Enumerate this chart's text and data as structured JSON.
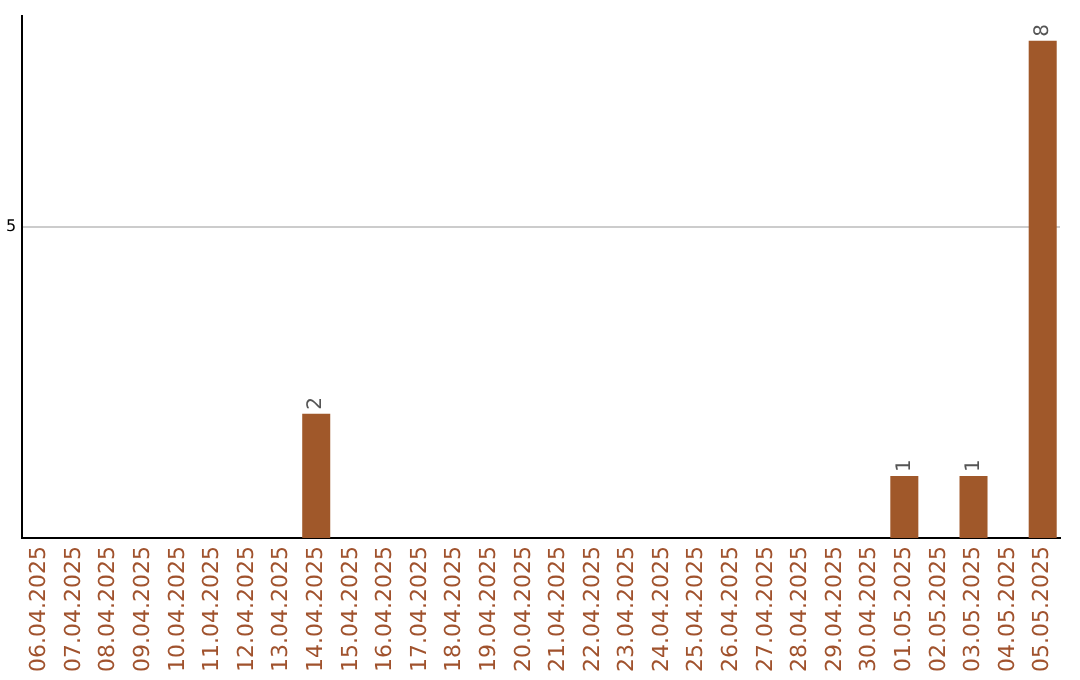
{
  "chart_data": {
    "type": "bar",
    "categories": [
      "06.04.2025",
      "07.04.2025",
      "08.04.2025",
      "09.04.2025",
      "10.04.2025",
      "11.04.2025",
      "12.04.2025",
      "13.04.2025",
      "14.04.2025",
      "15.04.2025",
      "16.04.2025",
      "17.04.2025",
      "18.04.2025",
      "19.04.2025",
      "20.04.2025",
      "21.04.2025",
      "22.04.2025",
      "23.04.2025",
      "24.04.2025",
      "25.04.2025",
      "26.04.2025",
      "27.04.2025",
      "28.04.2025",
      "29.04.2025",
      "30.04.2025",
      "01.05.2025",
      "02.05.2025",
      "03.05.2025",
      "04.05.2025",
      "05.05.2025"
    ],
    "values": [
      0,
      0,
      0,
      0,
      0,
      0,
      0,
      0,
      2,
      0,
      0,
      0,
      0,
      0,
      0,
      0,
      0,
      0,
      0,
      0,
      0,
      0,
      0,
      0,
      0,
      1,
      0,
      1,
      0,
      8
    ],
    "value_labels": [
      null,
      null,
      null,
      null,
      null,
      null,
      null,
      null,
      "2",
      null,
      null,
      null,
      null,
      null,
      null,
      null,
      null,
      null,
      null,
      null,
      null,
      null,
      null,
      null,
      null,
      "1",
      null,
      "1",
      null,
      "8"
    ],
    "color": "#a0582a",
    "ylim": [
      0,
      8.4
    ],
    "yticks": [
      5
    ],
    "grid": "y",
    "legend": false
  }
}
